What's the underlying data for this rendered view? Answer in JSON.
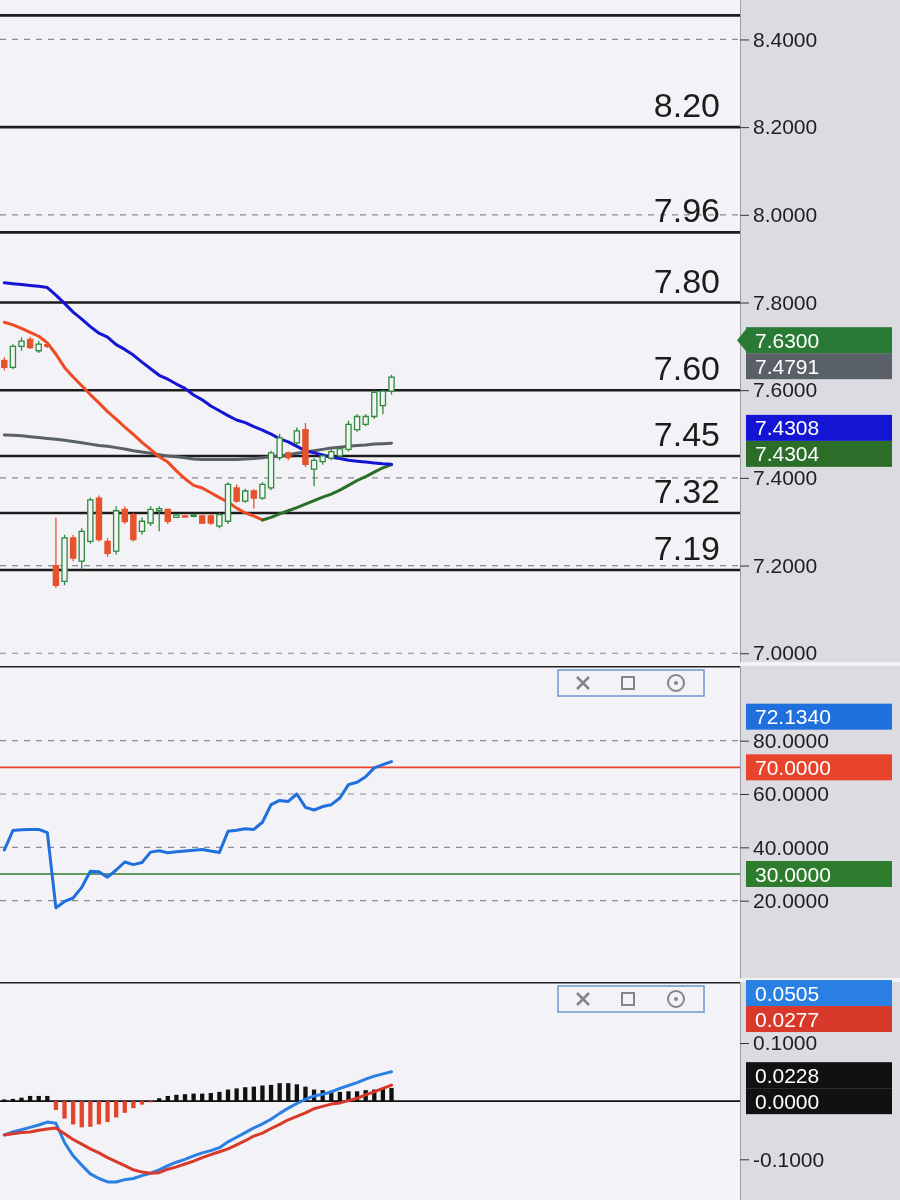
{
  "chart_data": [
    {
      "type": "candlestick",
      "categories": [
        null,
        null,
        null,
        null,
        null,
        null,
        null,
        null,
        null,
        null,
        null,
        null,
        null,
        null,
        null,
        null,
        null,
        null,
        null,
        null,
        null,
        null,
        null,
        null,
        null,
        null,
        null,
        null,
        null,
        null,
        null,
        null,
        null,
        null,
        null,
        null,
        null,
        null,
        null,
        null,
        null,
        null,
        null,
        null,
        null,
        null,
        null,
        null,
        null,
        null,
        null,
        null,
        null,
        null,
        null,
        null,
        null,
        null,
        null,
        null,
        null,
        null,
        null,
        null,
        null,
        null,
        null,
        null,
        null,
        null,
        null,
        null,
        null,
        null,
        null,
        null,
        null,
        null,
        null,
        null,
        null,
        null,
        null,
        null,
        null,
        null
      ],
      "ohlc": [
        [
          7.668,
          7.675,
          7.645,
          7.652
        ],
        [
          7.652,
          7.705,
          7.648,
          7.7
        ],
        [
          7.7,
          7.72,
          7.69,
          7.712
        ],
        [
          7.716,
          7.722,
          7.694,
          7.697
        ],
        [
          7.69,
          7.712,
          7.685,
          7.705
        ],
        [
          7.704,
          7.708,
          7.696,
          7.7
        ],
        [
          7.2,
          7.309,
          7.149,
          7.155
        ],
        [
          7.164,
          7.27,
          7.155,
          7.263
        ],
        [
          7.263,
          7.27,
          7.21,
          7.217
        ],
        [
          7.21,
          7.285,
          7.191,
          7.278
        ],
        [
          7.255,
          7.355,
          7.25,
          7.35
        ],
        [
          7.354,
          7.36,
          7.255,
          7.259
        ],
        [
          7.255,
          7.262,
          7.22,
          7.228
        ],
        [
          7.233,
          7.335,
          7.225,
          7.325
        ],
        [
          7.328,
          7.335,
          7.295,
          7.3
        ],
        [
          7.316,
          7.32,
          7.255,
          7.259
        ],
        [
          7.278,
          7.31,
          7.27,
          7.301
        ],
        [
          7.297,
          7.335,
          7.29,
          7.328
        ],
        [
          7.325,
          7.335,
          7.278,
          7.33
        ],
        [
          7.328,
          7.33,
          7.295,
          7.301
        ],
        [
          7.31,
          7.318,
          7.308,
          7.315
        ],
        [
          7.313,
          7.316,
          7.309,
          7.312
        ],
        [
          7.312,
          7.318,
          7.31,
          7.315
        ],
        [
          7.313,
          7.316,
          7.295,
          7.297
        ],
        [
          7.313,
          7.318,
          7.293,
          7.297
        ],
        [
          7.29,
          7.32,
          7.285,
          7.316
        ],
        [
          7.301,
          7.39,
          7.295,
          7.385
        ],
        [
          7.377,
          7.385,
          7.343,
          7.347
        ],
        [
          7.347,
          7.375,
          7.343,
          7.37
        ],
        [
          7.37,
          7.374,
          7.33,
          7.354
        ],
        [
          7.354,
          7.39,
          7.35,
          7.385
        ],
        [
          7.377,
          7.462,
          7.372,
          7.457
        ],
        [
          7.446,
          7.5,
          7.44,
          7.491
        ],
        [
          7.457,
          7.46,
          7.44,
          7.446
        ],
        [
          7.48,
          7.515,
          7.475,
          7.507
        ],
        [
          7.51,
          7.525,
          7.425,
          7.431
        ],
        [
          7.42,
          7.445,
          7.381,
          7.44
        ],
        [
          7.437,
          7.452,
          7.43,
          7.45
        ],
        [
          7.445,
          7.465,
          7.44,
          7.46
        ],
        [
          7.45,
          7.47,
          7.445,
          7.466
        ],
        [
          7.465,
          7.53,
          7.46,
          7.522
        ],
        [
          7.51,
          7.545,
          7.505,
          7.54
        ],
        [
          7.522,
          7.545,
          7.518,
          7.54
        ],
        [
          7.54,
          7.6,
          7.535,
          7.595
        ],
        [
          7.565,
          7.6,
          7.545,
          7.598
        ],
        [
          7.598,
          7.635,
          7.59,
          7.63
        ],
        null,
        null,
        null,
        null,
        null,
        null,
        null,
        null,
        null,
        null,
        null,
        null,
        null,
        null,
        null,
        null,
        null,
        null,
        null,
        null,
        null,
        null,
        null,
        null,
        null,
        null,
        null,
        null,
        null,
        null,
        null,
        null,
        null,
        null,
        null,
        null,
        null,
        null,
        null,
        null
      ],
      "colors": [
        "#e5532d",
        "#2f8a3c",
        "#2f8a3c",
        "#e5532d",
        "#2f8a3c",
        "#e5532d",
        "#e5532d",
        "#2f8a3c",
        "#e5532d",
        "#2f8a3c",
        "#2f8a3c",
        "#e5532d",
        "#e5532d",
        "#2f8a3c",
        "#e5532d",
        "#e5532d",
        "#2f8a3c",
        "#2f8a3c",
        "#2f8a3c",
        "#e5532d",
        "#2f8a3c",
        "#e5532d",
        "#2f8a3c",
        "#e5532d",
        "#e5532d",
        "#2f8a3c",
        "#2f8a3c",
        "#e5532d",
        "#2f8a3c",
        "#e5532d",
        "#2f8a3c",
        "#2f8a3c",
        "#2f8a3c",
        "#e5532d",
        "#2f8a3c",
        "#e5532d",
        "#2f8a3c",
        "#2f8a3c",
        "#2f8a3c",
        "#2f8a3c",
        "#2f8a3c",
        "#2f8a3c",
        "#2f8a3c",
        "#2f8a3c",
        "#2f8a3c",
        "#2f8a3c",
        null,
        null,
        null,
        null,
        null,
        null,
        null,
        null,
        null,
        null,
        null,
        null,
        null,
        null,
        null,
        null,
        null,
        null,
        null,
        null,
        null,
        null,
        null,
        null,
        null,
        null,
        null,
        null,
        null,
        null,
        null,
        null,
        null,
        null,
        null,
        null,
        null,
        null,
        null,
        null
      ],
      "series": [
        {
          "type": "line",
          "color": "#5a6068",
          "values": [
            7.498,
            7.497,
            7.496,
            7.494,
            7.492,
            7.49,
            7.488,
            7.486,
            7.483,
            7.48,
            7.477,
            7.474,
            7.472,
            7.469,
            7.466,
            7.462,
            7.459,
            7.456,
            7.453,
            7.45,
            7.448,
            7.446,
            7.443,
            7.442,
            7.442,
            7.442,
            7.442,
            7.442,
            7.443,
            7.444,
            7.446,
            7.448,
            7.45,
            7.453,
            7.456,
            7.459,
            7.462,
            7.465,
            7.468,
            7.47,
            7.472,
            7.474,
            7.475,
            7.477,
            7.478,
            7.4791,
            null,
            null,
            null,
            null,
            null,
            null,
            null,
            null,
            null,
            null,
            null,
            null,
            null,
            null,
            null,
            null,
            null,
            null,
            null,
            null,
            null,
            null,
            null,
            null,
            null,
            null,
            null,
            null,
            null,
            null,
            null,
            null,
            null,
            null,
            null,
            null,
            null,
            null,
            null,
            null
          ]
        },
        {
          "type": "line",
          "color": "#f04a24",
          "values": [
            7.755,
            7.749,
            7.741,
            7.732,
            7.723,
            7.708,
            7.682,
            7.652,
            7.63,
            7.61,
            7.59,
            7.571,
            7.551,
            7.534,
            7.516,
            7.499,
            7.481,
            7.465,
            7.448,
            7.436,
            7.416,
            7.398,
            7.383,
            7.377,
            7.366,
            7.355,
            7.345,
            7.331,
            7.32,
            7.313,
            7.304,
            null,
            null,
            null,
            null,
            null,
            null,
            null,
            null,
            null,
            null,
            null,
            null,
            null,
            null,
            null,
            null,
            null,
            null,
            null,
            null,
            null,
            null,
            null,
            null,
            null,
            null,
            null,
            null,
            null,
            null,
            null,
            null,
            null,
            null,
            null,
            null,
            null,
            null,
            null,
            null,
            null,
            null,
            null,
            null,
            null,
            null,
            null,
            null,
            null,
            null,
            null,
            null,
            null,
            null,
            null
          ]
        },
        {
          "type": "line",
          "color": "#2a6e2a",
          "values": [
            null,
            null,
            null,
            null,
            null,
            null,
            null,
            null,
            null,
            null,
            null,
            null,
            null,
            null,
            null,
            null,
            null,
            null,
            null,
            null,
            null,
            null,
            null,
            null,
            null,
            null,
            null,
            null,
            null,
            null,
            7.304,
            7.31,
            7.318,
            7.325,
            7.332,
            7.34,
            7.348,
            7.356,
            7.363,
            7.372,
            7.383,
            7.394,
            7.403,
            7.413,
            7.423,
            7.4304,
            null,
            null,
            null,
            null,
            null,
            null,
            null,
            null,
            null,
            null,
            null,
            null,
            null,
            null,
            null,
            null,
            null,
            null,
            null,
            null,
            null,
            null,
            null,
            null,
            null,
            null,
            null,
            null,
            null,
            null,
            null,
            null,
            null,
            null,
            null,
            null,
            null,
            null,
            null,
            null
          ]
        },
        {
          "type": "line",
          "color": "#1414d4",
          "values": [
            7.845,
            7.843,
            7.841,
            7.839,
            7.837,
            7.834,
            7.817,
            7.798,
            7.778,
            7.762,
            7.745,
            7.73,
            7.721,
            7.704,
            7.693,
            7.68,
            7.664,
            7.649,
            7.634,
            7.625,
            7.614,
            7.604,
            7.589,
            7.578,
            7.564,
            7.553,
            7.542,
            7.532,
            7.526,
            7.517,
            7.509,
            7.5,
            7.489,
            7.482,
            7.472,
            7.462,
            7.457,
            7.452,
            7.447,
            7.444,
            7.44,
            7.438,
            7.436,
            7.434,
            7.432,
            7.4308,
            null,
            null,
            null,
            null,
            null,
            null,
            null,
            null,
            null,
            null,
            null,
            null,
            null,
            null,
            null,
            null,
            null,
            null,
            null,
            null,
            null,
            null,
            null,
            null,
            null,
            null,
            null,
            null,
            null,
            null,
            null,
            null,
            null,
            null,
            null,
            null,
            null,
            null,
            null,
            null
          ]
        }
      ],
      "ylim": [
        6.98,
        8.49
      ],
      "yticks": [
        {
          "value": 8.4,
          "label": "8.4000"
        },
        {
          "value": 8.2,
          "label": "8.2000"
        },
        {
          "value": 8.0,
          "label": "8.0000"
        },
        {
          "value": 7.8,
          "label": "7.8000"
        },
        {
          "value": 7.6,
          "label": "7.6000"
        },
        {
          "value": 7.4,
          "label": "7.4000"
        },
        {
          "value": 7.2,
          "label": "7.2000"
        },
        {
          "value": 7.0,
          "label": "7.0000"
        }
      ],
      "grid": "y",
      "tick_labels": "y",
      "ref_lines": [
        {
          "axis": "y",
          "value": 8.455
        },
        {
          "axis": "y",
          "value": 8.2,
          "label": "8.20"
        },
        {
          "axis": "y",
          "value": 7.96,
          "label": "7.96"
        },
        {
          "axis": "y",
          "value": 7.8,
          "label": "7.80"
        },
        {
          "axis": "y",
          "value": 7.6,
          "label": "7.60"
        },
        {
          "axis": "y",
          "value": 7.45,
          "label": "7.45"
        },
        {
          "axis": "y",
          "value": 7.32,
          "label": "7.32"
        },
        {
          "axis": "y",
          "value": 7.19,
          "label": "7.19"
        }
      ],
      "annotations": [
        "7.6300",
        "7.4791",
        "7.4308",
        "7.4304"
      ]
    },
    {
      "type": "line",
      "categories": [
        null,
        null,
        null,
        null,
        null,
        null,
        null,
        null,
        null,
        null,
        null,
        null,
        null,
        null,
        null,
        null,
        null,
        null,
        null,
        null,
        null,
        null,
        null,
        null,
        null,
        null,
        null,
        null,
        null,
        null,
        null,
        null,
        null,
        null,
        null,
        null,
        null,
        null,
        null,
        null,
        null,
        null,
        null,
        null,
        null,
        null,
        null,
        null,
        null,
        null,
        null,
        null,
        null,
        null,
        null,
        null,
        null,
        null,
        null,
        null,
        null,
        null,
        null,
        null,
        null,
        null,
        null,
        null,
        null,
        null,
        null,
        null,
        null,
        null,
        null,
        null,
        null,
        null,
        null,
        null,
        null,
        null,
        null,
        null,
        null,
        null
      ],
      "series": [
        {
          "color": "#1f6fdc",
          "values": [
            39,
            46.3,
            46.6,
            46.7,
            46.7,
            45.5,
            17.3,
            19.7,
            21,
            25,
            31,
            30.8,
            28.8,
            31.5,
            34.5,
            33.5,
            34.3,
            38.2,
            38.7,
            38,
            38.3,
            38.6,
            38.9,
            39.2,
            38.6,
            38.1,
            46,
            46.4,
            47,
            46.7,
            49.4,
            56,
            57.6,
            57.2,
            60,
            55,
            54,
            55.3,
            56,
            58.5,
            63.5,
            64.4,
            66.5,
            69.8,
            71,
            72.134,
            null,
            null,
            null,
            null,
            null,
            null,
            null,
            null,
            null,
            null,
            null,
            null,
            null,
            null,
            null,
            null,
            null,
            null,
            null,
            null,
            null,
            null,
            null,
            null,
            null,
            null,
            null,
            null,
            null,
            null,
            null,
            null,
            null,
            null,
            null,
            null,
            null,
            null,
            null,
            null
          ]
        }
      ],
      "ylim": [
        -9,
        108
      ],
      "yticks": [
        {
          "value": 80,
          "label": "80.0000"
        },
        {
          "value": 60,
          "label": "60.0000"
        },
        {
          "value": 40,
          "label": "40.0000"
        },
        {
          "value": 20,
          "label": "20.0000"
        }
      ],
      "grid": "y",
      "tick_labels": "y",
      "ref_lines": [
        {
          "axis": "y",
          "value": 70,
          "label": "70.0000",
          "color": "#e8432b"
        },
        {
          "axis": "y",
          "value": 30,
          "label": "30.0000",
          "color": "#2e7d2e"
        }
      ],
      "annotations": [
        "72.1340"
      ]
    },
    {
      "type": "bar",
      "stacked": true,
      "categories": [
        null,
        null,
        null,
        null,
        null,
        null,
        null,
        null,
        null,
        null,
        null,
        null,
        null,
        null,
        null,
        null,
        null,
        null,
        null,
        null,
        null,
        null,
        null,
        null,
        null,
        null,
        null,
        null,
        null,
        null,
        null,
        null,
        null,
        null,
        null,
        null,
        null,
        null,
        null,
        null,
        null,
        null,
        null,
        null,
        null,
        null,
        null,
        null,
        null,
        null,
        null,
        null,
        null,
        null,
        null,
        null,
        null,
        null,
        null,
        null,
        null,
        null,
        null,
        null,
        null,
        null,
        null,
        null,
        null,
        null,
        null,
        null,
        null,
        null,
        null,
        null,
        null,
        null,
        null,
        null,
        null,
        null,
        null,
        null,
        null,
        null
      ],
      "series": [
        {
          "color": "#111111",
          "values": [
            0.003,
            0.004,
            0.006,
            0.009,
            0.009,
            0.009,
            null,
            null,
            null,
            null,
            null,
            null,
            null,
            null,
            null,
            null,
            null,
            null,
            0.005,
            0.009,
            0.011,
            0.012,
            0.013,
            0.013,
            0.014,
            0.016,
            0.02,
            0.022,
            0.024,
            0.025,
            0.027,
            0.028,
            0.031,
            0.031,
            0.029,
            0.025,
            0.02,
            0.019,
            0.018,
            0.016,
            0.017,
            0.017,
            0.019,
            0.02,
            0.021,
            0.0228,
            null,
            null,
            null,
            null,
            null,
            null,
            null,
            null,
            null,
            null,
            null,
            null,
            null,
            null,
            null,
            null,
            null,
            null,
            null,
            null,
            null,
            null,
            null,
            null,
            null,
            null,
            null,
            null,
            null,
            null,
            null,
            null,
            null,
            null,
            null,
            null,
            null,
            null,
            null,
            null
          ]
        },
        {
          "color": "#e2442c",
          "values": [
            null,
            null,
            null,
            null,
            null,
            null,
            -0.015,
            -0.03,
            -0.04,
            -0.045,
            -0.044,
            -0.04,
            -0.036,
            -0.028,
            -0.02,
            -0.012,
            -0.006,
            -0.002,
            null,
            null,
            null,
            null,
            null,
            null,
            null,
            null,
            null,
            null,
            null,
            null,
            null,
            null,
            null,
            null,
            null,
            null,
            null,
            null,
            null,
            null,
            null,
            null,
            null,
            null,
            null,
            null,
            null,
            null,
            null,
            null,
            null,
            null,
            null,
            null,
            null,
            null,
            null,
            null,
            null,
            null,
            null,
            null,
            null,
            null,
            null,
            null,
            null,
            null,
            null,
            null,
            null,
            null,
            null,
            null,
            null,
            null,
            null,
            null,
            null,
            null,
            null,
            null,
            null,
            null,
            null,
            null
          ]
        },
        {
          "type": "line",
          "color": "#2a7fe3",
          "values": [
            -0.058,
            -0.053,
            -0.049,
            -0.045,
            -0.041,
            -0.036,
            -0.038,
            -0.071,
            -0.094,
            -0.11,
            -0.125,
            -0.133,
            -0.139,
            -0.139,
            -0.135,
            -0.133,
            -0.128,
            -0.124,
            -0.118,
            -0.111,
            -0.105,
            -0.1,
            -0.094,
            -0.089,
            -0.085,
            -0.08,
            -0.07,
            -0.062,
            -0.054,
            -0.046,
            -0.039,
            -0.031,
            -0.021,
            -0.012,
            -0.004,
            0.003,
            0.009,
            0.012,
            0.016,
            0.022,
            0.027,
            0.032,
            0.038,
            0.043,
            0.047,
            0.0505,
            null,
            null,
            null,
            null,
            null,
            null,
            null,
            null,
            null,
            null,
            null,
            null,
            null,
            null,
            null,
            null,
            null,
            null,
            null,
            null,
            null,
            null,
            null,
            null,
            null,
            null,
            null,
            null,
            null,
            null,
            null,
            null,
            null,
            null,
            null,
            null,
            null,
            null,
            null,
            null
          ]
        },
        {
          "type": "line",
          "color": "#d8392b",
          "values": [
            -0.058,
            -0.056,
            -0.054,
            -0.053,
            -0.05,
            -0.048,
            -0.046,
            -0.056,
            -0.066,
            -0.074,
            -0.082,
            -0.089,
            -0.097,
            -0.104,
            -0.111,
            -0.118,
            -0.122,
            -0.124,
            -0.123,
            -0.117,
            -0.113,
            -0.108,
            -0.103,
            -0.097,
            -0.092,
            -0.087,
            -0.082,
            -0.075,
            -0.068,
            -0.06,
            -0.055,
            -0.047,
            -0.04,
            -0.032,
            -0.026,
            -0.02,
            -0.013,
            -0.009,
            -0.005,
            -0.003,
            0.001,
            0.005,
            0.011,
            0.016,
            0.022,
            0.0277,
            null,
            null,
            null,
            null,
            null,
            null,
            null,
            null,
            null,
            null,
            null,
            null,
            null,
            null,
            null,
            null,
            null,
            null,
            null,
            null,
            null,
            null,
            null,
            null,
            null,
            null,
            null,
            null,
            null,
            null,
            null,
            null,
            null,
            null,
            null,
            null,
            null,
            null,
            null,
            null
          ]
        }
      ],
      "ylim": [
        -0.17,
        0.205
      ],
      "yticks": [
        {
          "value": 0.1,
          "label": "0.1000"
        },
        {
          "value": -0.1,
          "label": "-0.1000"
        }
      ],
      "tick_labels": "y",
      "ref_lines": [
        {
          "axis": "y",
          "value": 0,
          "label": "0.0000",
          "color": "#111111"
        }
      ],
      "annotations": [
        "0.0505",
        "0.0277",
        "0.0228"
      ]
    }
  ]
}
